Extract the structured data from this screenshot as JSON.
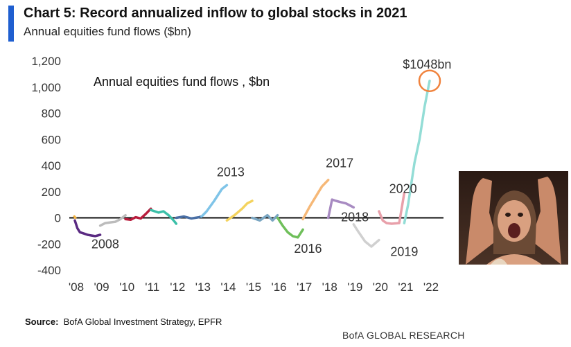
{
  "header": {
    "title": "Chart 5: Record annualized inflow to global stocks in 2021",
    "subtitle": "Annual equities fund flows ($bn)"
  },
  "footer": {
    "source_label": "Source:",
    "source_text": "BofA Global Investment Strategy, EPFR",
    "brand": "BofA GLOBAL RESEARCH"
  },
  "colors": {
    "accent": "#1f5fd0",
    "highlight_circle": "#f0823c",
    "zero_line": "#111111"
  },
  "photo": {
    "icon": "reaction-photo-excited-woman"
  },
  "chart_data": {
    "type": "line",
    "title": "Annual equities fund flows , $bn",
    "xlabel": "",
    "ylabel": "",
    "ylim": [
      -400,
      1200
    ],
    "yticks": [
      -400,
      -200,
      0,
      200,
      400,
      600,
      800,
      1000,
      1200
    ],
    "ytick_labels": [
      "-400",
      "-200",
      "0",
      "200",
      "400",
      "600",
      "800",
      "1,000",
      "1,200"
    ],
    "xlim": [
      2008,
      2022.4
    ],
    "xticks": [
      2008,
      2009,
      2010,
      2011,
      2012,
      2013,
      2014,
      2015,
      2016,
      2017,
      2018,
      2019,
      2020,
      2021,
      2022
    ],
    "xtick_labels": [
      "'08",
      "'09",
      "'10",
      "'11",
      "'12",
      "'13",
      "'14",
      "'15",
      "'16",
      "'17",
      "'18",
      "'19",
      "'20",
      "'21",
      "'22"
    ],
    "grid": false,
    "legend": "none",
    "series": [
      {
        "color": "#f2b341",
        "x": [
          2007.98,
          2008.02
        ],
        "y": [
          10,
          0
        ]
      },
      {
        "color": "#5a2a82",
        "x": [
          2008.0,
          2008.1,
          2008.2,
          2008.35,
          2008.5,
          2008.65,
          2008.8,
          2009.0
        ],
        "y": [
          -20,
          -80,
          -110,
          -120,
          -130,
          -135,
          -140,
          -130
        ]
      },
      {
        "color": "#bcbcbc",
        "x": [
          2009.0,
          2009.2,
          2009.4,
          2009.6,
          2009.8,
          2010.0
        ],
        "y": [
          -60,
          -40,
          -35,
          -30,
          -10,
          20
        ]
      },
      {
        "color": "#b81c3c",
        "x": [
          2010.0,
          2010.2,
          2010.4,
          2010.6,
          2010.8,
          2011.0
        ],
        "y": [
          -10,
          -15,
          5,
          -5,
          30,
          70
        ]
      },
      {
        "color": "#3bbfa8",
        "x": [
          2011.0,
          2011.3,
          2011.5,
          2011.7,
          2011.9,
          2012.0
        ],
        "y": [
          60,
          40,
          50,
          20,
          -20,
          -45
        ]
      },
      {
        "color": "#4a6fa5",
        "x": [
          2012.0,
          2012.3,
          2012.6,
          2012.9,
          2013.0
        ],
        "y": [
          0,
          10,
          -5,
          5,
          10
        ]
      },
      {
        "color": "#7fc4e8",
        "x": [
          2013.0,
          2013.2,
          2013.5,
          2013.8,
          2014.0
        ],
        "y": [
          10,
          50,
          130,
          220,
          250
        ]
      },
      {
        "color": "#f4d35e",
        "x": [
          2014.0,
          2014.3,
          2014.6,
          2014.8,
          2015.0
        ],
        "y": [
          -20,
          20,
          70,
          110,
          130
        ]
      },
      {
        "color": "#7aa6c2",
        "x": [
          2015.0,
          2015.3,
          2015.6,
          2015.8,
          2016.0
        ],
        "y": [
          0,
          -20,
          20,
          -20,
          20
        ]
      },
      {
        "color": "#6fbf5a",
        "x": [
          2016.0,
          2016.2,
          2016.4,
          2016.6,
          2016.8,
          2017.0
        ],
        "y": [
          0,
          -60,
          -110,
          -140,
          -150,
          -90
        ]
      },
      {
        "color": "#f6b877",
        "x": [
          2017.0,
          2017.25,
          2017.5,
          2017.75,
          2018.0
        ],
        "y": [
          -10,
          80,
          160,
          240,
          290
        ]
      },
      {
        "color": "#a88bc2",
        "x": [
          2018.0,
          2018.15,
          2018.3,
          2018.5,
          2018.7,
          2019.0
        ],
        "y": [
          0,
          140,
          130,
          120,
          110,
          80
        ]
      },
      {
        "color": "#d0d0d0",
        "x": [
          2019.0,
          2019.2,
          2019.45,
          2019.7,
          2020.0
        ],
        "y": [
          -50,
          -110,
          -180,
          -220,
          -170
        ]
      },
      {
        "color": "#e8a0aa",
        "x": [
          2020.0,
          2020.15,
          2020.3,
          2020.5,
          2020.8,
          2021.0
        ],
        "y": [
          50,
          -20,
          -40,
          -45,
          -40,
          190
        ]
      },
      {
        "color": "#93ddd6",
        "x": [
          2021.0,
          2021.15,
          2021.4,
          2021.6,
          2021.8,
          2022.0
        ],
        "y": [
          -40,
          100,
          420,
          600,
          850,
          1048
        ]
      }
    ],
    "year_labels": [
      {
        "text": "2008",
        "x": 2009.2,
        "y": -232
      },
      {
        "text": "2013",
        "x": 2014.15,
        "y": 317
      },
      {
        "text": "2016",
        "x": 2017.2,
        "y": -267
      },
      {
        "text": "2017",
        "x": 2018.45,
        "y": 387
      },
      {
        "text": "2018",
        "x": 2019.05,
        "y": -27
      },
      {
        "text": "2019",
        "x": 2021.0,
        "y": -292
      },
      {
        "text": "2020",
        "x": 2020.95,
        "y": 190
      },
      {
        "text": "$1048bn",
        "x": 2021.9,
        "y": 1142
      }
    ],
    "highlight": {
      "x": 2022.0,
      "y": 1048
    }
  }
}
